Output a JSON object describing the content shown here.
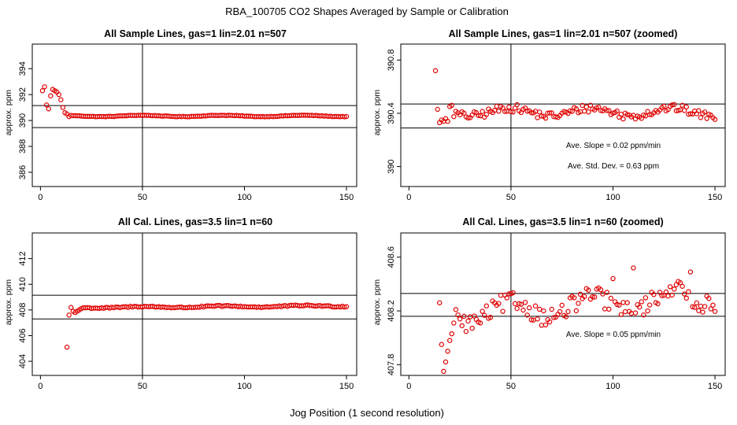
{
  "page": {
    "title": "RBA_100705  CO2 Shapes Averaged by Sample or Calibration",
    "xlabel": "Jog Position (1 second resolution)"
  },
  "colors": {
    "points": "#e00000",
    "lines": "#000000"
  },
  "chart_data": [
    {
      "type": "scatter",
      "title": "All Sample Lines, gas=1 lin=2.01 n=507",
      "ylabel": "approx. ppm",
      "xlim": [
        -4,
        155
      ],
      "ylim": [
        384.9,
        395.9
      ],
      "xticks": [
        0,
        50,
        100,
        150
      ],
      "yticks": [
        386,
        388,
        390,
        392,
        394
      ],
      "vline": 50,
      "hlines": [
        389.45,
        391.15
      ],
      "annotations": [],
      "series": [
        {
          "x": [],
          "y": []
        }
      ],
      "seed": {
        "x0": 1,
        "pre": [
          392.3,
          392.6,
          391.2,
          390.9,
          391.9,
          392.4,
          392.3,
          392.2,
          392.0,
          391.6,
          391.0,
          390.6,
          390.5,
          390.3
        ],
        "base": 390.35,
        "amp": 0.05,
        "trend": 0,
        "noise": 0.02
      }
    },
    {
      "type": "scatter",
      "title": "All Sample Lines, gas=1 lin=2.01 n=507 (zoomed)",
      "ylabel": "approx. ppm",
      "xlim": [
        -4,
        155
      ],
      "ylim": [
        389.85,
        390.92
      ],
      "xticks": [
        0,
        50,
        100,
        150
      ],
      "yticks": [
        390.0,
        390.4,
        390.8
      ],
      "vline": 50,
      "hlines": [
        390.47,
        390.29
      ],
      "annotations": [
        "Ave. Slope =  0.02  ppm/min",
        "Ave. Std. Dev. =  0.63  ppm"
      ],
      "series": [
        {
          "x": [],
          "y": []
        }
      ],
      "seed": {
        "x0": 13,
        "pre": [
          390.72,
          390.43,
          390.33,
          390.35,
          390.34,
          390.36,
          390.34,
          390.45,
          390.46
        ],
        "base": 390.41,
        "amp": 0.03,
        "trend": 0,
        "noise": 0.03
      }
    },
    {
      "type": "scatter",
      "title": "All Cal. Lines, gas=3.5 lin=1 n=60",
      "ylabel": "approx. ppm",
      "xlim": [
        -4,
        155
      ],
      "ylim": [
        402.9,
        414.0
      ],
      "xticks": [
        0,
        50,
        100,
        150
      ],
      "yticks": [
        404,
        406,
        408,
        410,
        412
      ],
      "vline": 50,
      "hlines": [
        409.15,
        407.3
      ],
      "annotations": [],
      "series": [
        {
          "x": [],
          "y": []
        }
      ],
      "seed": {
        "x0": 13,
        "pre": [
          405.1,
          407.6,
          408.2,
          407.9,
          407.8,
          407.9,
          408.0,
          408.1
        ],
        "base": 408.22,
        "amp": 0.05,
        "trend": 0.001,
        "noise": 0.05
      }
    },
    {
      "type": "scatter",
      "title": "All Cal. Lines, gas=3.5 lin=1 n=60 (zoomed)",
      "ylabel": "approx. ppm",
      "xlim": [
        -4,
        155
      ],
      "ylim": [
        407.72,
        408.78
      ],
      "xticks": [
        0,
        50,
        100,
        150
      ],
      "yticks": [
        407.8,
        408.2,
        408.6
      ],
      "vline": 50,
      "hlines": [
        408.33,
        408.16
      ],
      "annotations": [
        "Ave. Slope =  0.05  ppm/min"
      ],
      "series": [
        {
          "x": [],
          "y": []
        }
      ],
      "seed": {
        "x0": 15,
        "pre": [
          408.26,
          407.95,
          407.75,
          407.82,
          407.9,
          407.98,
          408.03,
          408.11,
          408.21,
          408.17,
          408.14,
          408.09
        ],
        "base": 408.2,
        "amp": 0.07,
        "trend": 0.0011,
        "noise": 0.07
      }
    }
  ]
}
